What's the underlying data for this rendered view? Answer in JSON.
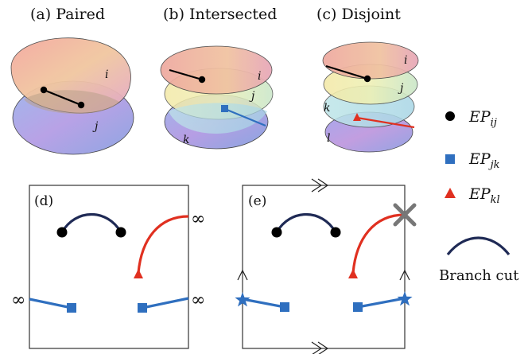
{
  "panels": {
    "a": {
      "title": "(a) Paired",
      "sheets": [
        "i",
        "j"
      ]
    },
    "b": {
      "title": "(b) Intersected",
      "sheets": [
        "i",
        "j",
        "k"
      ]
    },
    "c": {
      "title": "(c) Disjoint",
      "sheets": [
        "i",
        "j",
        "k",
        "l"
      ]
    },
    "d": {
      "title": "(d)",
      "infinity": [
        "∞",
        "∞",
        "∞"
      ]
    },
    "e": {
      "title": "(e)"
    }
  },
  "legend": {
    "items": [
      {
        "symbol": "black-circle",
        "base": "EP",
        "sub": "ij",
        "color": "#000000"
      },
      {
        "symbol": "blue-square",
        "base": "EP",
        "sub": "jk",
        "color": "#2f6fbf"
      },
      {
        "symbol": "red-triangle",
        "base": "EP",
        "sub": "kl",
        "color": "#e03020"
      }
    ],
    "branch_cut_label": "Branch cut",
    "branch_cut_color": "#1f2a55"
  },
  "colors": {
    "ep_ij": "#000000",
    "ep_jk": "#2f6fbf",
    "ep_kl": "#e03020",
    "branch_cut": "#1f2a55",
    "boundary_marker": "#777777"
  }
}
